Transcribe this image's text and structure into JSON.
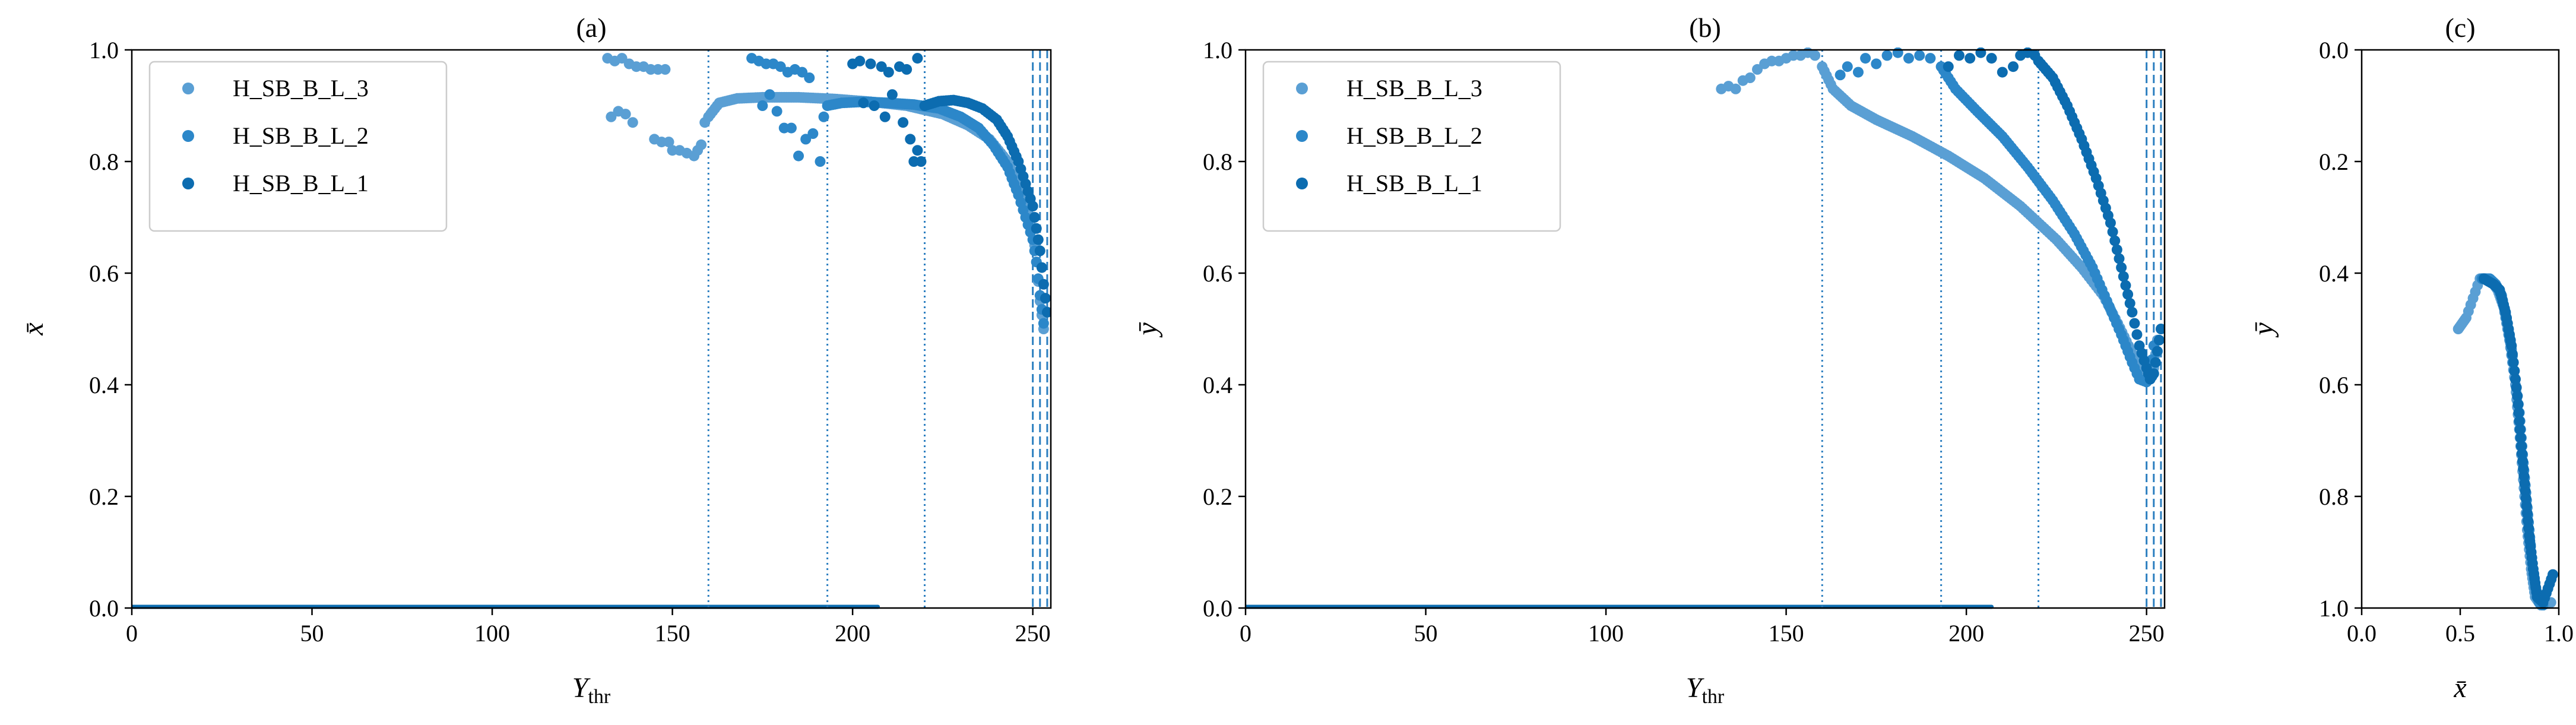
{
  "colors": {
    "H_SB_B_L_3": "#5a9fd4",
    "H_SB_B_L_2": "#2c87c9",
    "H_SB_B_L_1": "#0c6cb0",
    "threshold_line": "#2c7fc0"
  },
  "chart_data": [
    {
      "type": "scatter",
      "title": "(a)",
      "xlabel": "Y",
      "xlabel_sub": "thr",
      "ylabel": "x̄",
      "xlim": [
        0,
        255
      ],
      "ylim": [
        0,
        1.0
      ],
      "xticks": [
        "0",
        "50",
        "100",
        "150",
        "200",
        "250"
      ],
      "yticks": [
        "0.0",
        "0.2",
        "0.4",
        "0.6",
        "0.8",
        "1.0"
      ],
      "grid": false,
      "legend_position": "upper-left",
      "legend": [
        "H_SB_B_L_3",
        "H_SB_B_L_2",
        "H_SB_B_L_1"
      ],
      "vlines": [
        {
          "x": 160,
          "style": "dotted"
        },
        {
          "x": 193,
          "style": "dotted"
        },
        {
          "x": 220,
          "style": "dotted"
        },
        {
          "x": 250,
          "style": "dashed"
        },
        {
          "x": 252,
          "style": "dashed"
        },
        {
          "x": 254,
          "style": "dashed"
        }
      ],
      "baseline": {
        "x_from": 0,
        "x_to": 207,
        "y": 0
      },
      "series": [
        {
          "name": "H_SB_B_L_3",
          "scattered": [
            [
              132,
              0.985
            ],
            [
              134,
              0.98
            ],
            [
              136,
              0.985
            ],
            [
              138,
              0.975
            ],
            [
              140,
              0.97
            ],
            [
              142,
              0.97
            ],
            [
              144,
              0.965
            ],
            [
              146,
              0.965
            ],
            [
              148,
              0.965
            ],
            [
              133,
              0.88
            ],
            [
              135,
              0.89
            ],
            [
              137,
              0.885
            ],
            [
              139,
              0.87
            ],
            [
              145,
              0.84
            ],
            [
              147,
              0.835
            ],
            [
              149,
              0.835
            ],
            [
              150,
              0.82
            ],
            [
              152,
              0.82
            ],
            [
              154,
              0.815
            ],
            [
              156,
              0.81
            ],
            [
              157,
              0.82
            ],
            [
              158,
              0.83
            ],
            [
              159,
              0.87
            ]
          ],
          "curve": [
            [
              160,
              0.88
            ],
            [
              163,
              0.905
            ],
            [
              168,
              0.913
            ],
            [
              175,
              0.915
            ],
            [
              185,
              0.915
            ],
            [
              195,
              0.912
            ],
            [
              205,
              0.907
            ],
            [
              215,
              0.9
            ],
            [
              225,
              0.885
            ],
            [
              232,
              0.865
            ],
            [
              238,
              0.84
            ],
            [
              243,
              0.8
            ],
            [
              246,
              0.76
            ],
            [
              248,
              0.72
            ],
            [
              250,
              0.68
            ],
            [
              251,
              0.62
            ],
            [
              252,
              0.55
            ],
            [
              253,
              0.5
            ]
          ]
        },
        {
          "name": "H_SB_B_L_2",
          "scattered": [
            [
              172,
              0.985
            ],
            [
              174,
              0.98
            ],
            [
              176,
              0.975
            ],
            [
              178,
              0.975
            ],
            [
              180,
              0.97
            ],
            [
              182,
              0.96
            ],
            [
              184,
              0.965
            ],
            [
              186,
              0.96
            ],
            [
              188,
              0.95
            ],
            [
              175,
              0.9
            ],
            [
              177,
              0.92
            ],
            [
              179,
              0.89
            ],
            [
              181,
              0.86
            ],
            [
              183,
              0.86
            ],
            [
              185,
              0.81
            ],
            [
              187,
              0.84
            ],
            [
              189,
              0.85
            ],
            [
              191,
              0.8
            ],
            [
              192,
              0.88
            ]
          ],
          "curve": [
            [
              193,
              0.9
            ],
            [
              197,
              0.905
            ],
            [
              203,
              0.907
            ],
            [
              210,
              0.905
            ],
            [
              217,
              0.902
            ],
            [
              224,
              0.895
            ],
            [
              230,
              0.88
            ],
            [
              235,
              0.86
            ],
            [
              239,
              0.83
            ],
            [
              243,
              0.79
            ],
            [
              246,
              0.74
            ],
            [
              248,
              0.7
            ],
            [
              250,
              0.66
            ],
            [
              251,
              0.62
            ],
            [
              252,
              0.56
            ],
            [
              253,
              0.51
            ]
          ]
        },
        {
          "name": "H_SB_B_L_1",
          "scattered": [
            [
              200,
              0.975
            ],
            [
              202,
              0.98
            ],
            [
              205,
              0.975
            ],
            [
              208,
              0.97
            ],
            [
              210,
              0.96
            ],
            [
              213,
              0.97
            ],
            [
              215,
              0.965
            ],
            [
              218,
              0.985
            ],
            [
              203,
              0.905
            ],
            [
              206,
              0.9
            ],
            [
              209,
              0.88
            ],
            [
              211,
              0.92
            ],
            [
              214,
              0.87
            ],
            [
              216,
              0.84
            ],
            [
              217,
              0.8
            ],
            [
              218,
              0.82
            ],
            [
              219,
              0.8
            ]
          ],
          "curve": [
            [
              220,
              0.9
            ],
            [
              224,
              0.908
            ],
            [
              228,
              0.91
            ],
            [
              232,
              0.905
            ],
            [
              236,
              0.895
            ],
            [
              240,
              0.875
            ],
            [
              243,
              0.845
            ],
            [
              246,
              0.8
            ],
            [
              248,
              0.76
            ],
            [
              250,
              0.72
            ],
            [
              251,
              0.68
            ],
            [
              252,
              0.64
            ],
            [
              253,
              0.58
            ],
            [
              254,
              0.53
            ]
          ]
        }
      ]
    },
    {
      "type": "scatter",
      "title": "(b)",
      "xlabel": "Y",
      "xlabel_sub": "thr",
      "ylabel": "ȳ",
      "xlim": [
        0,
        255
      ],
      "ylim": [
        0,
        1.0
      ],
      "xticks": [
        "0",
        "50",
        "100",
        "150",
        "200",
        "250"
      ],
      "yticks": [
        "0.0",
        "0.2",
        "0.4",
        "0.6",
        "0.8",
        "1.0"
      ],
      "grid": false,
      "legend_position": "upper-left",
      "legend": [
        "H_SB_B_L_3",
        "H_SB_B_L_2",
        "H_SB_B_L_1"
      ],
      "vlines": [
        {
          "x": 160,
          "style": "dotted"
        },
        {
          "x": 193,
          "style": "dotted"
        },
        {
          "x": 220,
          "style": "dotted"
        },
        {
          "x": 250,
          "style": "dashed"
        },
        {
          "x": 252,
          "style": "dashed"
        },
        {
          "x": 254,
          "style": "dashed"
        }
      ],
      "baseline": {
        "x_from": 0,
        "x_to": 207,
        "y": 0
      },
      "series": [
        {
          "name": "H_SB_B_L_3",
          "scattered": [
            [
              132,
              0.93
            ],
            [
              134,
              0.935
            ],
            [
              136,
              0.93
            ],
            [
              138,
              0.945
            ],
            [
              140,
              0.95
            ],
            [
              142,
              0.965
            ],
            [
              144,
              0.975
            ],
            [
              146,
              0.98
            ],
            [
              148,
              0.98
            ],
            [
              150,
              0.985
            ],
            [
              152,
              0.99
            ],
            [
              154,
              0.99
            ],
            [
              156,
              0.995
            ],
            [
              158,
              0.99
            ]
          ],
          "curve": [
            [
              160,
              0.97
            ],
            [
              163,
              0.93
            ],
            [
              168,
              0.9
            ],
            [
              175,
              0.875
            ],
            [
              185,
              0.845
            ],
            [
              195,
              0.81
            ],
            [
              205,
              0.77
            ],
            [
              215,
              0.72
            ],
            [
              225,
              0.66
            ],
            [
              232,
              0.61
            ],
            [
              238,
              0.56
            ],
            [
              242,
              0.51
            ],
            [
              245,
              0.47
            ],
            [
              248,
              0.43
            ],
            [
              250,
              0.41
            ],
            [
              251,
              0.41
            ],
            [
              252,
              0.43
            ],
            [
              253,
              0.48
            ]
          ]
        },
        {
          "name": "H_SB_B_L_2",
          "scattered": [
            [
              165,
              0.955
            ],
            [
              167,
              0.97
            ],
            [
              170,
              0.96
            ],
            [
              172,
              0.985
            ],
            [
              175,
              0.975
            ],
            [
              178,
              0.99
            ],
            [
              181,
              0.995
            ],
            [
              184,
              0.985
            ],
            [
              187,
              0.99
            ],
            [
              190,
              0.985
            ]
          ],
          "curve": [
            [
              193,
              0.97
            ],
            [
              197,
              0.93
            ],
            [
              203,
              0.89
            ],
            [
              210,
              0.845
            ],
            [
              217,
              0.79
            ],
            [
              224,
              0.73
            ],
            [
              230,
              0.67
            ],
            [
              235,
              0.61
            ],
            [
              239,
              0.55
            ],
            [
              243,
              0.49
            ],
            [
              246,
              0.44
            ],
            [
              248,
              0.41
            ],
            [
              250,
              0.405
            ],
            [
              251,
              0.42
            ],
            [
              252,
              0.47
            ]
          ]
        },
        {
          "name": "H_SB_B_L_1",
          "scattered": [
            [
              195,
              0.97
            ],
            [
              198,
              0.99
            ],
            [
              201,
              0.985
            ],
            [
              204,
              0.995
            ],
            [
              207,
              0.985
            ],
            [
              210,
              0.96
            ],
            [
              213,
              0.97
            ],
            [
              215,
              0.99
            ],
            [
              217,
              0.995
            ],
            [
              219,
              0.99
            ]
          ],
          "curve": [
            [
              220,
              0.98
            ],
            [
              224,
              0.95
            ],
            [
              228,
              0.9
            ],
            [
              232,
              0.84
            ],
            [
              236,
              0.77
            ],
            [
              240,
              0.69
            ],
            [
              243,
              0.61
            ],
            [
              246,
              0.53
            ],
            [
              248,
              0.47
            ],
            [
              250,
              0.43
            ],
            [
              251,
              0.41
            ],
            [
              252,
              0.42
            ],
            [
              253,
              0.46
            ],
            [
              254,
              0.5
            ]
          ]
        }
      ]
    },
    {
      "type": "scatter",
      "title": "(c)",
      "xlabel": "x̄",
      "ylabel": "ȳ",
      "xlim": [
        0,
        1.0
      ],
      "ylim": [
        1.0,
        0
      ],
      "y_inverted": true,
      "xticks": [
        "0.0",
        "0.5",
        "1.0"
      ],
      "yticks": [
        "0.0",
        "0.2",
        "0.4",
        "0.6",
        "0.8",
        "1.0"
      ],
      "grid": false,
      "series": [
        {
          "name": "H_SB_B_L_3",
          "points": [
            [
              0.49,
              0.5
            ],
            [
              0.53,
              0.48
            ],
            [
              0.6,
              0.41
            ],
            [
              0.63,
              0.41
            ],
            [
              0.66,
              0.415
            ],
            [
              0.69,
              0.43
            ],
            [
              0.72,
              0.46
            ],
            [
              0.75,
              0.52
            ],
            [
              0.78,
              0.6
            ],
            [
              0.8,
              0.68
            ],
            [
              0.82,
              0.77
            ],
            [
              0.84,
              0.86
            ],
            [
              0.86,
              0.93
            ],
            [
              0.88,
              0.98
            ],
            [
              0.91,
              0.995
            ],
            [
              0.96,
              0.99
            ]
          ]
        },
        {
          "name": "H_SB_B_L_2",
          "points": [
            [
              0.61,
              0.41
            ],
            [
              0.65,
              0.41
            ],
            [
              0.68,
              0.42
            ],
            [
              0.71,
              0.44
            ],
            [
              0.74,
              0.49
            ],
            [
              0.77,
              0.56
            ],
            [
              0.8,
              0.65
            ],
            [
              0.82,
              0.74
            ],
            [
              0.84,
              0.82
            ],
            [
              0.86,
              0.9
            ],
            [
              0.88,
              0.96
            ],
            [
              0.9,
              0.99
            ],
            [
              0.92,
              0.995
            ]
          ]
        },
        {
          "name": "H_SB_B_L_1",
          "points": [
            [
              0.62,
              0.41
            ],
            [
              0.67,
              0.42
            ],
            [
              0.7,
              0.43
            ],
            [
              0.73,
              0.47
            ],
            [
              0.76,
              0.53
            ],
            [
              0.79,
              0.62
            ],
            [
              0.81,
              0.71
            ],
            [
              0.83,
              0.79
            ],
            [
              0.85,
              0.87
            ],
            [
              0.87,
              0.93
            ],
            [
              0.89,
              0.98
            ],
            [
              0.92,
              0.99
            ],
            [
              0.97,
              0.94
            ]
          ]
        }
      ]
    }
  ]
}
